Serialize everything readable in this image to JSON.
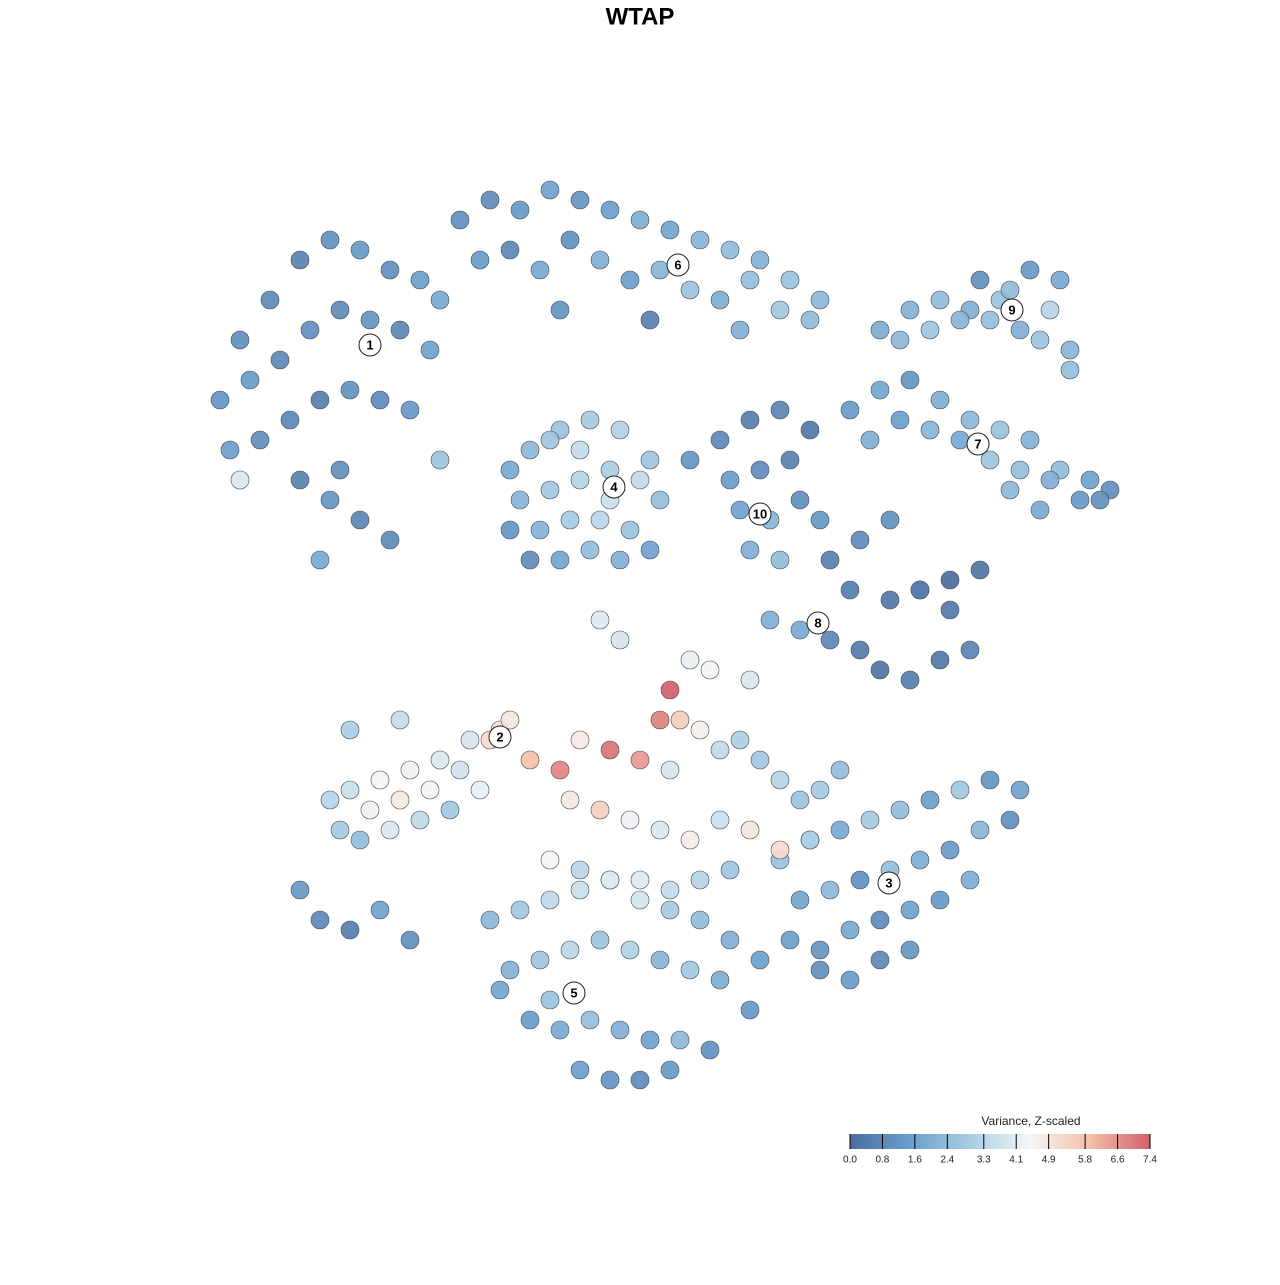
{
  "chart_data": {
    "type": "scatter",
    "title": "WTAP",
    "xlim": [
      0,
      93
    ],
    "ylim": [
      0,
      92
    ],
    "colorscale": {
      "title": "Variance, Z-scaled",
      "lim": [
        0,
        7.4
      ],
      "colors": [
        "#4b6d9e",
        "#6a9fcd",
        "#a9cde3",
        "#f5f6f7",
        "#f3c0a8",
        "#d25f6b"
      ],
      "ticks": [
        {
          "value": 0,
          "label": "0.0"
        },
        {
          "value": 0.8,
          "label": "0.8"
        },
        {
          "value": 1.6,
          "label": "1.6"
        },
        {
          "value": 2.4,
          "label": "2.4"
        },
        {
          "value": 3.3,
          "label": "3.3"
        },
        {
          "value": 4.1,
          "label": "4.1"
        },
        {
          "value": 4.9,
          "label": "4.9"
        },
        {
          "value": 5.8,
          "label": "5.8"
        },
        {
          "value": 6.6,
          "label": "6.6"
        },
        {
          "value": 7.4,
          "label": "7.4"
        }
      ]
    },
    "series": [
      {
        "name": "1",
        "label_at": [
          17,
          75.5
        ],
        "x": [
          2,
          4,
          7,
          10,
          13,
          16,
          19,
          22,
          24,
          5,
          8,
          11,
          14,
          17,
          20,
          23,
          3,
          6,
          9,
          12,
          15,
          18,
          21,
          10,
          13,
          16,
          12,
          19,
          24,
          14,
          4
        ],
        "y": [
          70,
          76,
          80,
          84,
          86,
          85,
          83,
          82,
          80,
          72,
          74,
          77,
          79,
          78,
          77,
          75,
          65,
          66,
          68,
          70,
          71,
          70,
          69,
          62,
          60,
          58,
          54,
          56,
          64,
          63,
          62
        ],
        "values": [
          1.2,
          1.0,
          0.9,
          0.6,
          1.1,
          1.3,
          1.0,
          1.5,
          1.8,
          1.4,
          0.8,
          1.0,
          0.9,
          1.2,
          0.7,
          1.6,
          1.5,
          1.0,
          0.8,
          0.5,
          1.1,
          0.9,
          1.3,
          0.6,
          1.2,
          0.7,
          1.8,
          0.9,
          2.6,
          1.0,
          3.9
        ]
      },
      {
        "name": "6",
        "label_at": [
          47.8,
          83.5
        ],
        "x": [
          26,
          29,
          32,
          35,
          38,
          41,
          44,
          47,
          50,
          53,
          56,
          59,
          62,
          28,
          31,
          34,
          37,
          40,
          43,
          46,
          49,
          52,
          55,
          58,
          61,
          36,
          45,
          54
        ],
        "y": [
          88,
          90,
          89,
          91,
          90,
          89,
          88,
          87,
          86,
          85,
          84,
          82,
          80,
          84,
          85,
          83,
          86,
          84,
          82,
          83,
          81,
          80,
          82,
          79,
          78,
          79,
          78,
          77
        ],
        "values": [
          1.0,
          0.9,
          1.3,
          1.6,
          1.2,
          1.5,
          1.9,
          1.7,
          2.2,
          2.4,
          2.1,
          2.6,
          2.3,
          1.4,
          0.8,
          1.8,
          1.1,
          2.0,
          1.5,
          2.2,
          2.6,
          1.9,
          2.5,
          2.8,
          2.4,
          1.2,
          0.6,
          2.0
        ]
      },
      {
        "name": "4",
        "label_at": [
          41.4,
          61.3
        ],
        "x": [
          31,
          33,
          36,
          39,
          42,
          45,
          32,
          35,
          38,
          41,
          44,
          46,
          31,
          34,
          37,
          40,
          43,
          33,
          36,
          39,
          42,
          45,
          35,
          38,
          41
        ],
        "y": [
          63,
          65,
          67,
          68,
          67,
          64,
          60,
          61,
          62,
          63,
          62,
          60,
          57,
          57,
          58,
          58,
          57,
          54,
          54,
          55,
          54,
          55,
          66,
          65,
          60
        ],
        "values": [
          1.8,
          2.3,
          2.6,
          2.9,
          3.1,
          2.7,
          2.2,
          2.8,
          3.2,
          3.0,
          3.4,
          2.5,
          1.2,
          2.1,
          2.9,
          3.3,
          2.6,
          0.9,
          1.7,
          2.4,
          2.0,
          1.6,
          2.7,
          3.5,
          3.6
        ]
      },
      {
        "name": "9",
        "label_at": [
          81.2,
          79
        ],
        "x": [
          68,
          71,
          74,
          77,
          80,
          83,
          86,
          70,
          73,
          76,
          79,
          82,
          85,
          78,
          81,
          84,
          87,
          87
        ],
        "y": [
          77,
          79,
          80,
          79,
          80,
          83,
          82,
          76,
          77,
          78,
          78,
          77,
          79,
          82,
          81,
          76,
          75,
          73
        ],
        "values": [
          1.9,
          2.1,
          2.4,
          2.0,
          2.6,
          1.3,
          1.8,
          2.3,
          2.7,
          2.2,
          2.5,
          2.0,
          3.2,
          1.1,
          2.4,
          2.6,
          2.2,
          2.5
        ]
      },
      {
        "name": "7",
        "label_at": [
          77.8,
          65.6
        ],
        "x": [
          65,
          68,
          71,
          74,
          77,
          80,
          83,
          86,
          89,
          91,
          67,
          70,
          73,
          76,
          79,
          82,
          85,
          88,
          90,
          81,
          84
        ],
        "y": [
          69,
          71,
          72,
          70,
          68,
          67,
          66,
          63,
          62,
          61,
          66,
          68,
          67,
          66,
          64,
          63,
          62,
          60,
          60,
          61,
          59
        ],
        "values": [
          1.4,
          1.7,
          1.2,
          1.9,
          2.3,
          2.6,
          2.1,
          2.4,
          1.6,
          1.0,
          2.0,
          1.5,
          2.2,
          1.8,
          2.7,
          2.5,
          2.0,
          1.3,
          1.1,
          2.3,
          1.8
        ]
      },
      {
        "name": "10",
        "label_at": [
          56,
          58.6
        ],
        "x": [
          49,
          52,
          55,
          58,
          61,
          53,
          56,
          59,
          54,
          57,
          60,
          55,
          58
        ],
        "y": [
          64,
          66,
          68,
          69,
          67,
          62,
          63,
          64,
          59,
          58,
          60,
          55,
          54
        ],
        "values": [
          1.2,
          0.8,
          0.5,
          0.7,
          0.3,
          1.4,
          0.9,
          0.6,
          1.6,
          2.2,
          1.0,
          2.0,
          2.4
        ]
      },
      {
        "name": "8",
        "label_at": [
          61.8,
          47.7
        ],
        "x": [
          57,
          60,
          63,
          66,
          69,
          72,
          75,
          78,
          63,
          66,
          69,
          72,
          75,
          68,
          71,
          74,
          77,
          65,
          62
        ],
        "y": [
          48,
          47,
          46,
          45,
          50,
          51,
          52,
          53,
          54,
          56,
          58,
          51,
          49,
          43,
          42,
          44,
          45,
          51,
          58
        ],
        "values": [
          2.0,
          1.8,
          0.8,
          0.4,
          0.3,
          0.1,
          0.0,
          0.2,
          0.6,
          0.9,
          1.1,
          0.5,
          0.4,
          0.2,
          0.5,
          0.3,
          0.7,
          0.5,
          1.3
        ]
      },
      {
        "name": "3",
        "label_at": [
          68.9,
          21.7
        ],
        "x": [
          58,
          61,
          64,
          67,
          70,
          73,
          76,
          79,
          82,
          60,
          63,
          66,
          69,
          72,
          75,
          78,
          81,
          59,
          62,
          65,
          68,
          71,
          74,
          77,
          62,
          65,
          68,
          71
        ],
        "y": [
          24,
          26,
          27,
          28,
          29,
          30,
          31,
          32,
          31,
          20,
          21,
          22,
          23,
          24,
          25,
          27,
          28,
          16,
          15,
          17,
          18,
          19,
          20,
          22,
          13,
          12,
          14,
          15
        ],
        "values": [
          2.6,
          2.1,
          1.8,
          2.9,
          2.4,
          1.5,
          2.8,
          1.2,
          1.6,
          1.7,
          2.3,
          1.1,
          2.5,
          1.9,
          1.4,
          2.2,
          1.0,
          1.5,
          1.2,
          1.8,
          0.9,
          1.6,
          1.3,
          1.9,
          1.0,
          1.4,
          0.8,
          1.2
        ]
      },
      {
        "name": "5",
        "label_at": [
          37.4,
          10.7
        ],
        "x": [
          29,
          32,
          35,
          38,
          41,
          44,
          47,
          50,
          53,
          56,
          31,
          34,
          37,
          40,
          43,
          46,
          49,
          52,
          55,
          33,
          36,
          39,
          42,
          45,
          48,
          51,
          38,
          41,
          44,
          47,
          30,
          35
        ],
        "y": [
          18,
          19,
          20,
          21,
          22,
          20,
          19,
          18,
          16,
          14,
          13,
          14,
          15,
          16,
          15,
          14,
          13,
          12,
          9,
          8,
          7,
          8,
          7,
          6,
          6,
          5,
          3,
          2,
          2,
          3,
          11,
          10
        ],
        "values": [
          2.3,
          2.8,
          3.4,
          3.6,
          3.0,
          3.8,
          2.9,
          2.4,
          2.0,
          1.5,
          2.1,
          2.7,
          3.3,
          2.6,
          3.1,
          2.2,
          2.8,
          1.9,
          1.3,
          1.4,
          1.8,
          2.5,
          2.0,
          1.6,
          2.3,
          1.1,
          1.5,
          1.2,
          0.9,
          1.3,
          1.7,
          2.6
        ]
      },
      {
        "name": "2",
        "label_at": [
          30,
          36.3
        ],
        "x": [
          13,
          15,
          18,
          21,
          24,
          27,
          30,
          14,
          17,
          20,
          23,
          26,
          29,
          31,
          16,
          19,
          22,
          25,
          28,
          15,
          20,
          10,
          12,
          15,
          18,
          21,
          33,
          36,
          38,
          41,
          44,
          47,
          48,
          50,
          52,
          54,
          56,
          58,
          60,
          62,
          64,
          37,
          40,
          43,
          46,
          49,
          52,
          55,
          58,
          61,
          35,
          38,
          41,
          44,
          47,
          50,
          53,
          47,
          49,
          42,
          40,
          51,
          55,
          46
        ],
        "y": [
          30,
          31,
          32,
          33,
          34,
          36,
          37,
          27,
          29,
          30,
          31,
          33,
          36,
          38,
          26,
          27,
          28,
          29,
          31,
          37,
          38,
          21,
          18,
          17,
          19,
          16,
          34,
          33,
          36,
          35,
          34,
          33,
          38,
          37,
          35,
          36,
          34,
          32,
          30,
          31,
          33,
          30,
          29,
          28,
          27,
          26,
          28,
          27,
          25,
          26,
          24,
          23,
          22,
          22,
          21,
          22,
          23,
          41,
          44,
          46,
          48,
          43,
          42,
          38
        ],
        "values": [
          3.2,
          3.6,
          4.4,
          4.6,
          3.9,
          3.8,
          5.0,
          2.9,
          4.3,
          4.8,
          4.5,
          3.7,
          5.2,
          4.9,
          2.5,
          3.9,
          3.4,
          2.8,
          4.2,
          3.0,
          3.5,
          1.3,
          0.8,
          0.5,
          1.6,
          1.0,
          5.9,
          6.8,
          4.8,
          7.1,
          6.5,
          3.8,
          5.5,
          4.6,
          3.4,
          3.0,
          2.8,
          3.2,
          2.6,
          2.9,
          2.4,
          4.9,
          5.5,
          4.3,
          3.9,
          4.7,
          3.6,
          4.9,
          5.2,
          3.1,
          4.4,
          3.3,
          4.1,
          4.0,
          3.5,
          3.2,
          2.7,
          7.4,
          4.2,
          3.8,
          4.0,
          4.5,
          3.9,
          6.9
        ]
      }
    ]
  }
}
